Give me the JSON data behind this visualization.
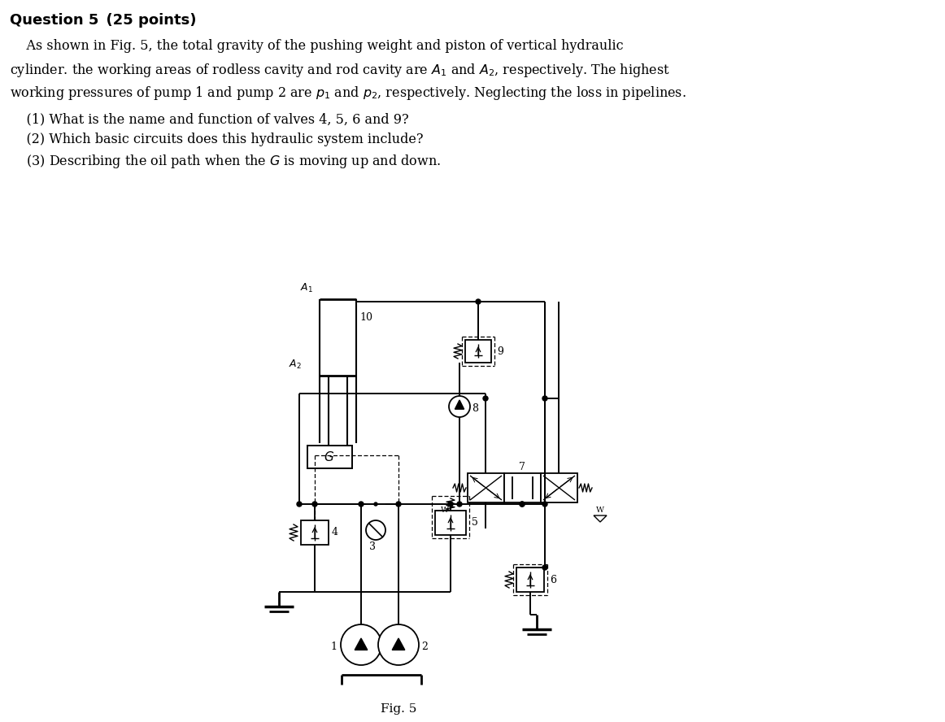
{
  "bg_color": "#ffffff",
  "text_color": "#000000",
  "title_line": "Question 5   (25 points)",
  "body_lines": [
    "    As shown in Fig. 5, the total gravity of the pushing weight and piston of vertical hydraulic",
    "cylinder. the working areas of rodless cavity and rod cavity are $A_1$ and $A_2$, respectively. The highest",
    "working pressures of pump 1 and pump 2 are $p_1$ and $p_2$, respectively. Neglecting the loss in pipelines.",
    "    (1) What is the name and function of valves 4, 5, 6 and 9?",
    "    (2) Which basic circuits does this hydraulic system include?",
    "    (3) Describing the oil path when the $G$ is moving up and down."
  ],
  "fig_caption": "Fig. 5"
}
